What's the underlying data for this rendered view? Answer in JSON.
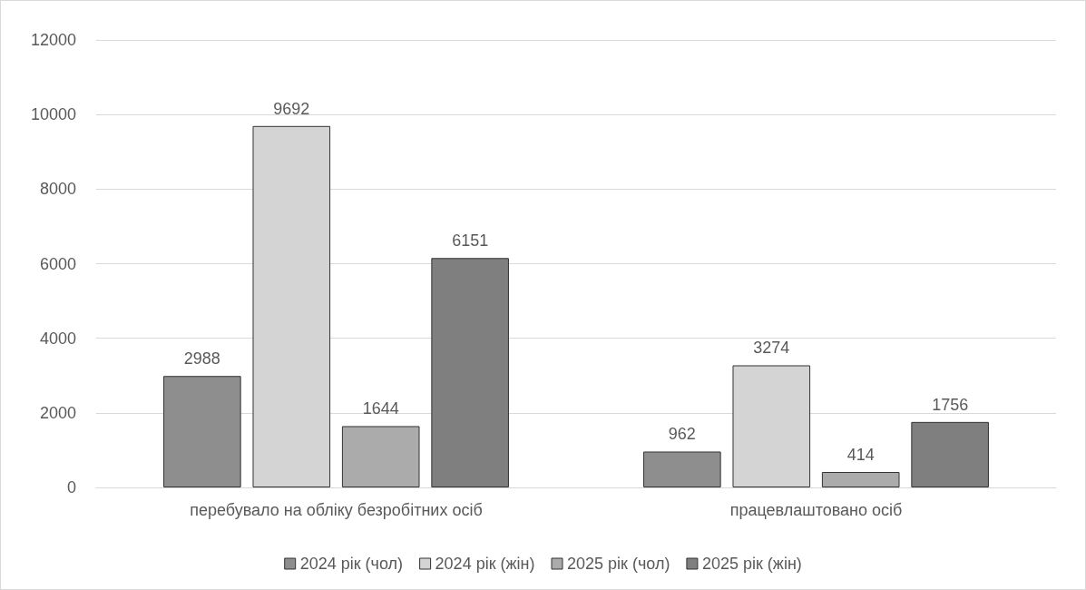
{
  "chart_data": {
    "type": "bar",
    "categories": [
      "перебувало на обліку безробітних осіб",
      "працевлаштовано осіб"
    ],
    "series": [
      {
        "name": "2024 рік (чол)",
        "color": "#8e8e8e",
        "values": [
          2988,
          962
        ]
      },
      {
        "name": "2024 рік (жін)",
        "color": "#d4d4d4",
        "values": [
          9692,
          3274
        ]
      },
      {
        "name": "2025 рік (чол)",
        "color": "#ababab",
        "values": [
          1644,
          414
        ]
      },
      {
        "name": "2025 рік (жін)",
        "color": "#7f7f7f",
        "values": [
          6151,
          1756
        ]
      }
    ],
    "ylim": [
      0,
      12000
    ],
    "yticks": [
      0,
      2000,
      4000,
      6000,
      8000,
      10000,
      12000
    ],
    "grid": "y",
    "legend": "bottom",
    "data_labels": true
  }
}
